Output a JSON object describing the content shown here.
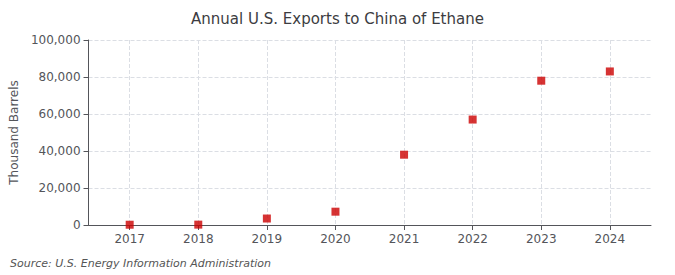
{
  "chart_data": {
    "type": "scatter",
    "title": "Annual U.S. Exports to China of Ethane",
    "ylabel": "Thousand Barrels",
    "annotation": "Source: U.S. Energy Information Administration",
    "x": [
      2017,
      2018,
      2019,
      2020,
      2021,
      2022,
      2023,
      2024
    ],
    "values": [
      150,
      200,
      3500,
      7200,
      38000,
      57000,
      78000,
      83000
    ],
    "color": "#cc0000",
    "marker": "square",
    "xlim": [
      2016.4,
      2024.6
    ],
    "xticks": [
      2017,
      2018,
      2019,
      2020,
      2021,
      2022,
      2023,
      2024
    ],
    "ylim": [
      0,
      100000
    ],
    "yticks": [
      0,
      {
        "value": 20000,
        "label": "20,000"
      },
      {
        "value": 40000,
        "label": "40,000"
      },
      {
        "value": 60000,
        "label": "60,000"
      },
      {
        "value": 80000,
        "label": "80,000"
      },
      {
        "value": 100000,
        "label": "100,000"
      }
    ],
    "grid": true
  }
}
